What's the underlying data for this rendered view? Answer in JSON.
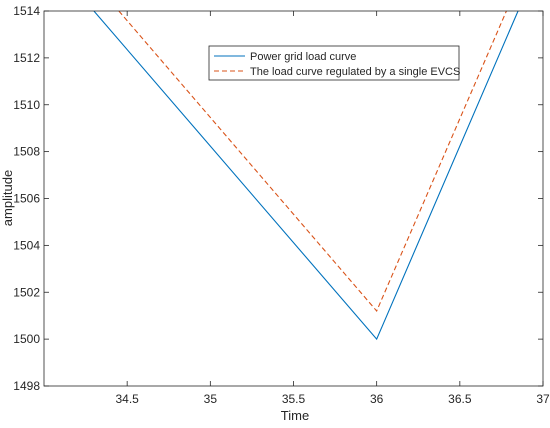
{
  "chart_data": {
    "type": "line",
    "title": "",
    "xlabel": "Time",
    "ylabel": "amplitude",
    "xlim": [
      34,
      37
    ],
    "ylim": [
      1498,
      1514
    ],
    "xticks": [
      34.5,
      35,
      35.5,
      36,
      36.5,
      37
    ],
    "xtick_labels": [
      "34.5",
      "35",
      "35.5",
      "36",
      "36.5",
      "37"
    ],
    "yticks": [
      1498,
      1500,
      1502,
      1504,
      1506,
      1508,
      1510,
      1512,
      1514
    ],
    "ytick_labels": [
      "1498",
      "1500",
      "1502",
      "1504",
      "1506",
      "1508",
      "1510",
      "1512",
      "1514"
    ],
    "grid": false,
    "legend_position": "top-right",
    "series": [
      {
        "name": "Power grid load curve",
        "color": "#0072BD",
        "style": "solid",
        "x": [
          34.3,
          36.0,
          36.85
        ],
        "y": [
          1514.0,
          1500.0,
          1514.0
        ]
      },
      {
        "name": "The load curve regulated by a single EVCS",
        "color": "#D95319",
        "style": "dashed",
        "x": [
          34.45,
          36.0,
          36.78
        ],
        "y": [
          1514.0,
          1501.2,
          1514.0
        ]
      }
    ]
  }
}
